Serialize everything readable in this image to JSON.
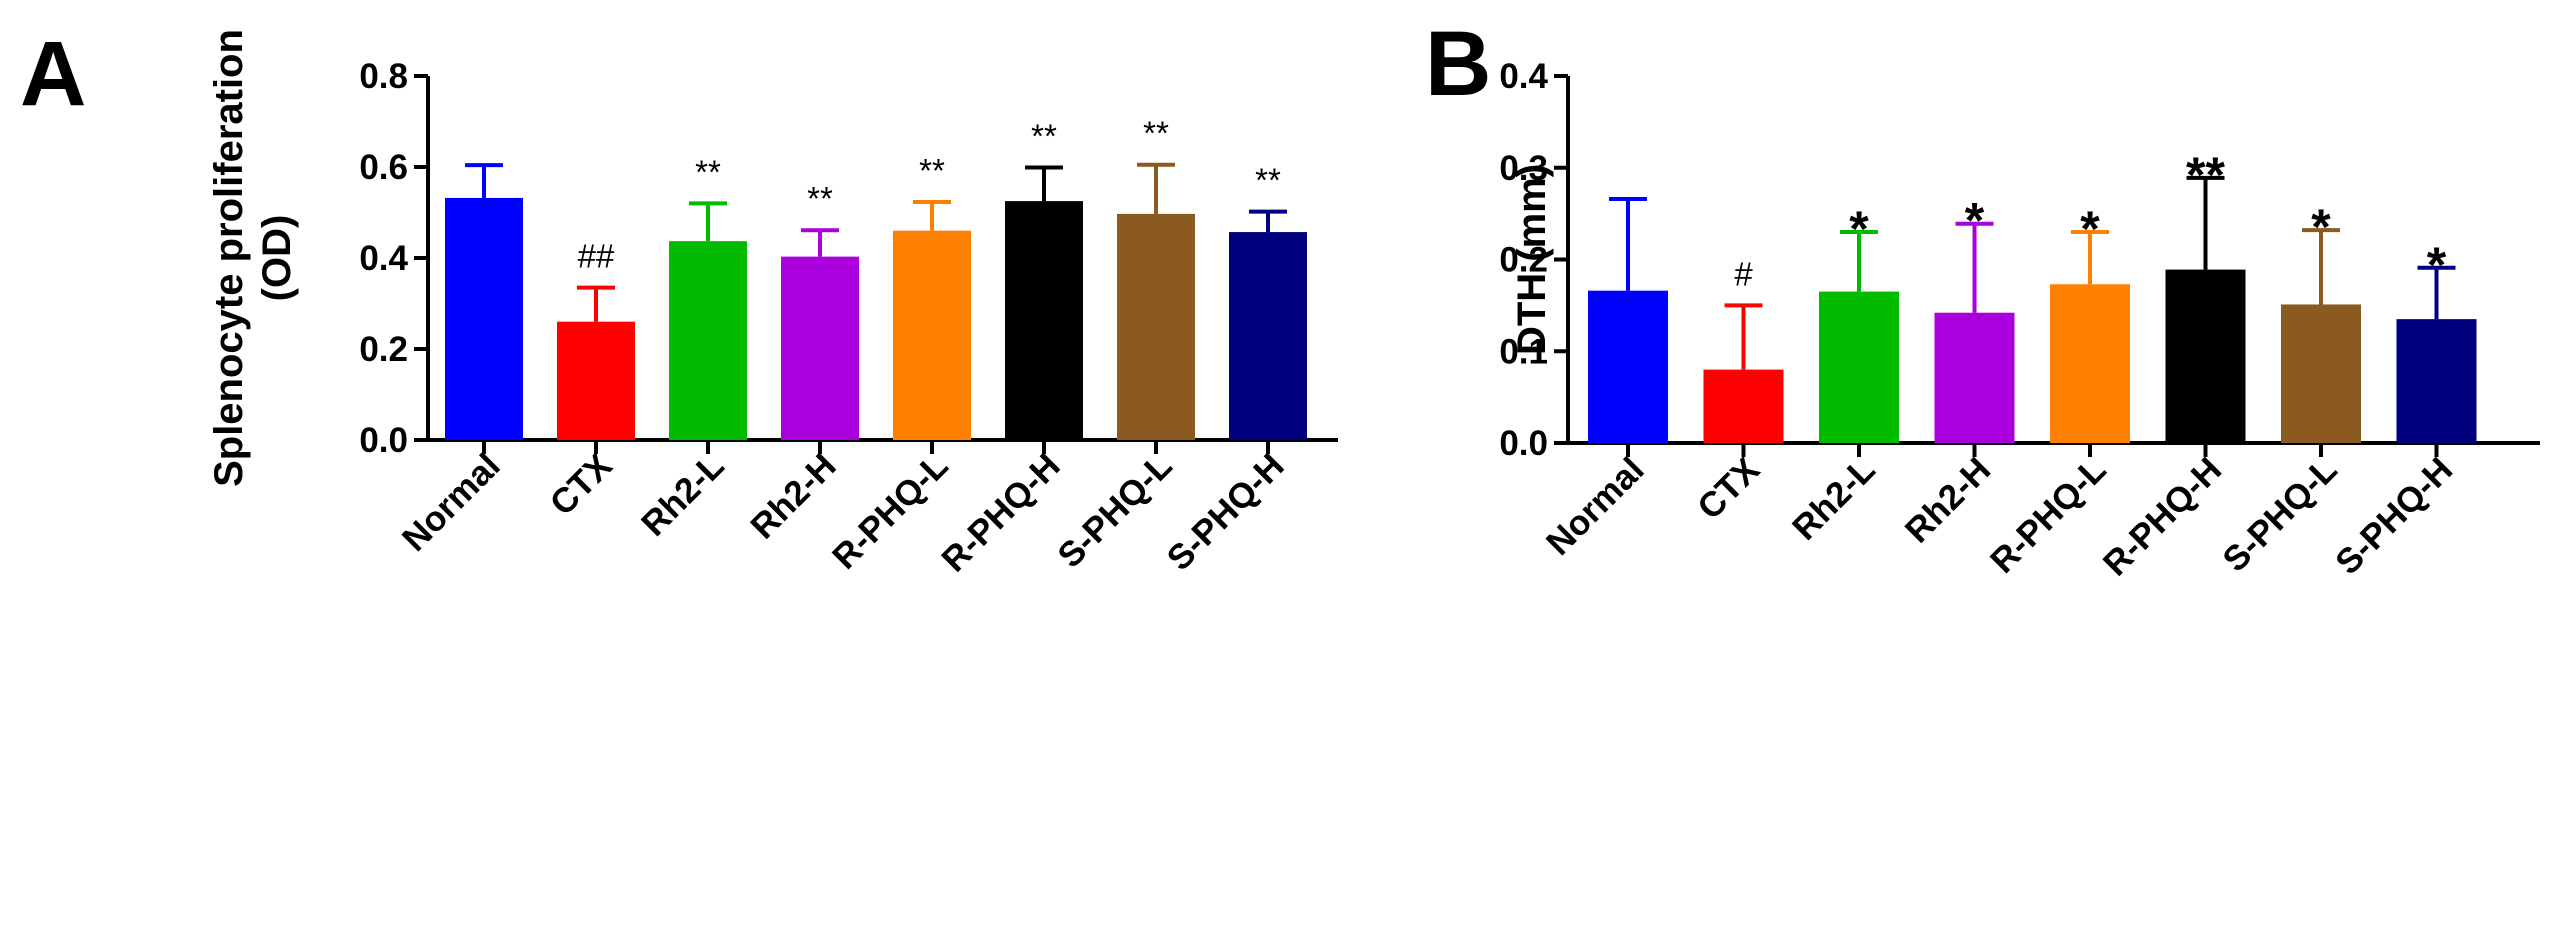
{
  "chart_data": [
    {
      "panel": "A",
      "type": "bar",
      "ylabel": [
        "Splenocyte proliferation",
        "(OD)"
      ],
      "ylim": [
        0,
        0.8
      ],
      "yticks": [
        "0.0",
        "0.2",
        "0.4",
        "0.6",
        "0.8"
      ],
      "categories": [
        "Normal",
        "CTX",
        "Rh2-L",
        "Rh2-H",
        "R-PHQ-L",
        "R-PHQ-H",
        "S-PHQ-L",
        "S-PHQ-H"
      ],
      "values": [
        0.532,
        0.26,
        0.437,
        0.403,
        0.46,
        0.525,
        0.497,
        0.457
      ],
      "errors": [
        0.072,
        0.075,
        0.083,
        0.058,
        0.063,
        0.074,
        0.108,
        0.045
      ],
      "significance": [
        "",
        "##",
        "**",
        "**",
        "**",
        "**",
        "**",
        "**"
      ],
      "colors": [
        "#0000ff",
        "#ff0000",
        "#00bb00",
        "#aa00dd",
        "#ff8000",
        "#000000",
        "#8b5a20",
        "#00007f"
      ]
    },
    {
      "panel": "B",
      "type": "bar",
      "ylabel": [
        "DTH (mm)"
      ],
      "ylim": [
        0,
        0.4
      ],
      "yticks": [
        "0.0",
        "0.1",
        "0.2",
        "0.3",
        "0.4"
      ],
      "categories": [
        "Normal",
        "CTX",
        "Rh2-L",
        "Rh2-H",
        "R-PHQ-L",
        "R-PHQ-H",
        "S-PHQ-L",
        "S-PHQ-H"
      ],
      "values": [
        0.166,
        0.08,
        0.165,
        0.142,
        0.173,
        0.189,
        0.151,
        0.135
      ],
      "errors": [
        0.1,
        0.07,
        0.065,
        0.097,
        0.057,
        0.1,
        0.081,
        0.056
      ],
      "significance": [
        "",
        "#",
        "*",
        "*",
        "*",
        "**",
        "*",
        "*"
      ],
      "colors": [
        "#0000ff",
        "#ff0000",
        "#00bb00",
        "#aa00dd",
        "#ff8000",
        "#000000",
        "#8b5a20",
        "#00007f"
      ]
    }
  ]
}
